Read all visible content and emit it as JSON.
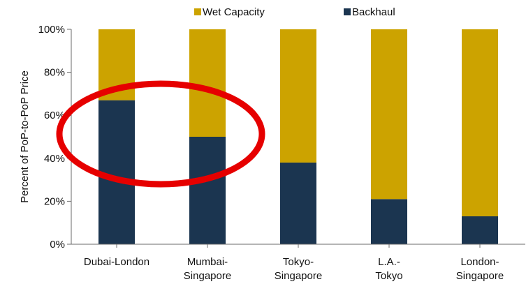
{
  "chart_data": {
    "type": "bar",
    "stacked": true,
    "normalized_percent": true,
    "title": "",
    "xlabel": "",
    "ylabel": "Percent of PoP-to-PoP Price",
    "categories": [
      [
        "Dubai-London"
      ],
      [
        "Mumbai-",
        "Singapore"
      ],
      [
        "Tokyo-",
        "Singapore"
      ],
      [
        "L.A.-",
        "Tokyo"
      ],
      [
        "London-",
        "Singapore"
      ]
    ],
    "series": [
      {
        "name": "Backhaul",
        "color": "#1b3550",
        "values": [
          67,
          50,
          38,
          21,
          13
        ]
      },
      {
        "name": "Wet Capacity",
        "color": "#cca300",
        "values": [
          33,
          50,
          62,
          79,
          87
        ]
      }
    ],
    "legend_order": [
      "Wet Capacity",
      "Backhaul"
    ],
    "legend_position": "top",
    "yticks": [
      "0%",
      "20%",
      "40%",
      "60%",
      "80%",
      "100%"
    ],
    "ytick_values": [
      0,
      20,
      40,
      60,
      80,
      100
    ],
    "ylim": [
      0,
      100
    ],
    "grid": false,
    "annotation": {
      "shape": "ellipse",
      "color": "#e60000",
      "covers": [
        "Dubai-London",
        "Mumbai-Singapore"
      ]
    }
  }
}
